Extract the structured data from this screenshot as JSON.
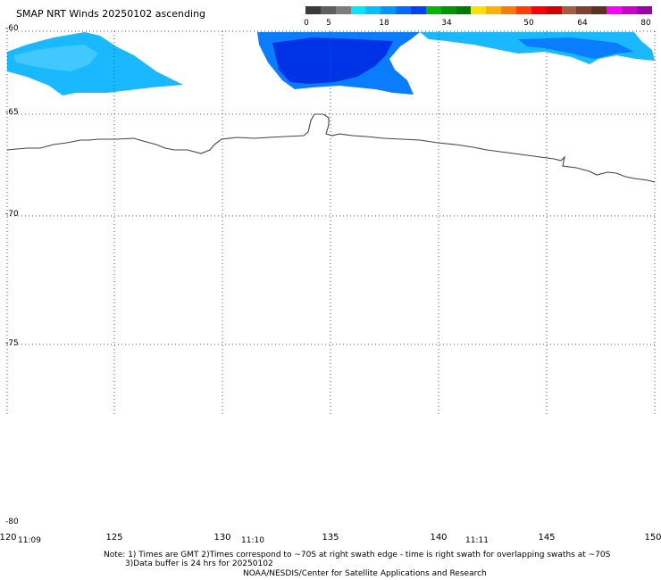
{
  "title": "SMAP NRT Winds 20250102 ascending",
  "colorbar": {
    "labels": [
      "0",
      "5",
      "18",
      "34",
      "50",
      "64",
      "80"
    ],
    "segments": [
      "#3a3a3a",
      "#5e5e5e",
      "#7d7d7d",
      "#00e6ff",
      "#00c0ff",
      "#0096ff",
      "#006bff",
      "#0040ff",
      "#00b800",
      "#009600",
      "#007a00",
      "#ffe000",
      "#ffb000",
      "#ff7a00",
      "#ff4000",
      "#ff0000",
      "#d20000",
      "#a06040",
      "#804030",
      "#603020",
      "#ff00ff",
      "#cc00cc",
      "#9900aa"
    ]
  },
  "map": {
    "lat_labels": [
      "-60",
      "-65",
      "-70",
      "-75",
      "-80"
    ],
    "lon_labels": [
      "120",
      "125",
      "130",
      "135",
      "140",
      "145",
      "150"
    ],
    "time_labels": [
      "11:09",
      "11:10",
      "11:11"
    ],
    "colors": {
      "light_blue": "#19b8ff",
      "medium_blue": "#0a7dff",
      "dark_blue": "#0033e6",
      "coast": "#444444",
      "grid": "#555555"
    }
  },
  "notes": {
    "line1": "Note: 1) Times are GMT 2)Times correspond to ~70S at right swath edge - time is right swath for overlapping swaths at ~70S",
    "line2": "3)Data buffer is 24 hrs for 20250102",
    "line3": "NOAA/NESDIS/Center for Satellite Applications and Research"
  }
}
